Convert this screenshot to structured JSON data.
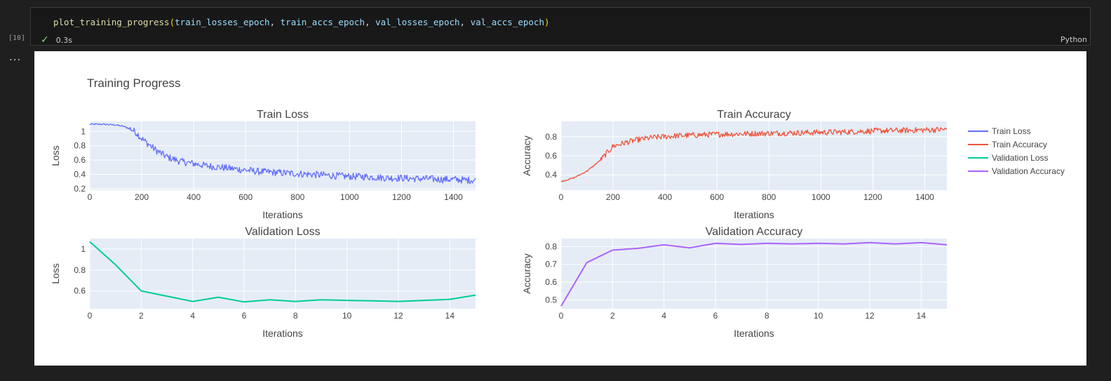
{
  "cell": {
    "execution_count": "[10]",
    "code": {
      "function": "plot_training_progress",
      "args": [
        "train_losses_epoch",
        "train_accs_epoch",
        "val_losses_epoch",
        "val_accs_epoch"
      ]
    },
    "duration": "0.3s",
    "language": "Python",
    "output_indicator": "..."
  },
  "colors": {
    "train_loss": "#636efa",
    "train_acc": "#ef553b",
    "val_loss": "#00cc96",
    "val_acc": "#ab63fa",
    "plot_bg": "#e5ecf6",
    "status_check": "#89d185"
  },
  "chart_data": {
    "title": "Training Progress",
    "legend": {
      "placement": "right",
      "items": [
        "Train Loss",
        "Train Accuracy",
        "Validation Loss",
        "Validation Accuracy"
      ]
    },
    "subplots": [
      {
        "type": "line",
        "title": "Train Loss",
        "xlabel": "Iterations",
        "ylabel": "Loss",
        "xlim": [
          0,
          1485
        ],
        "ylim": [
          0.18,
          1.14
        ],
        "xticks": [
          0,
          200,
          400,
          600,
          800,
          1000,
          1200,
          1400
        ],
        "yticks": [
          0.2,
          0.4,
          0.6,
          0.8,
          1
        ],
        "ytick_labels": [
          "0.2",
          "0.4",
          "0.6",
          "0.8",
          "1"
        ],
        "series": [
          {
            "name": "Train Loss",
            "x": [
              0,
              50,
              100,
              130,
              160,
              180,
              200,
              220,
              250,
              280,
              300,
              350,
              400,
              450,
              500,
              550,
              600,
              650,
              700,
              750,
              800,
              850,
              900,
              950,
              1000,
              1050,
              1100,
              1150,
              1200,
              1250,
              1300,
              1350,
              1400,
              1450,
              1485
            ],
            "y": [
              1.1,
              1.1,
              1.09,
              1.07,
              1.03,
              0.98,
              0.9,
              0.84,
              0.75,
              0.68,
              0.64,
              0.58,
              0.55,
              0.52,
              0.5,
              0.48,
              0.46,
              0.44,
              0.43,
              0.42,
              0.41,
              0.4,
              0.39,
              0.38,
              0.37,
              0.37,
              0.36,
              0.35,
              0.35,
              0.34,
              0.34,
              0.33,
              0.33,
              0.32,
              0.32
            ],
            "noise": 0.05
          }
        ]
      },
      {
        "type": "line",
        "title": "Train Accuracy",
        "xlabel": "Iterations",
        "ylabel": "Accuracy",
        "xlim": [
          0,
          1485
        ],
        "ylim": [
          0.24,
          0.96
        ],
        "xticks": [
          0,
          200,
          400,
          600,
          800,
          1000,
          1200,
          1400
        ],
        "yticks": [
          0.4,
          0.6,
          0.8
        ],
        "ytick_labels": [
          "0.4",
          "0.6",
          "0.8"
        ],
        "series": [
          {
            "name": "Train Accuracy",
            "x": [
              0,
              50,
              100,
              150,
              180,
              200,
              250,
              300,
              350,
              400,
              450,
              500,
              550,
              600,
              700,
              800,
              900,
              1000,
              1100,
              1200,
              1300,
              1400,
              1485
            ],
            "y": [
              0.33,
              0.37,
              0.44,
              0.55,
              0.64,
              0.7,
              0.74,
              0.77,
              0.79,
              0.8,
              0.81,
              0.815,
              0.82,
              0.825,
              0.83,
              0.835,
              0.84,
              0.845,
              0.85,
              0.86,
              0.865,
              0.87,
              0.875
            ],
            "noise": 0.03
          }
        ]
      },
      {
        "type": "line",
        "title": "Validation Loss",
        "xlabel": "Iterations",
        "ylabel": "Loss",
        "xlim": [
          0,
          15
        ],
        "ylim": [
          0.43,
          1.1
        ],
        "xticks": [
          0,
          2,
          4,
          6,
          8,
          10,
          12,
          14
        ],
        "yticks": [
          0.6,
          0.8,
          1
        ],
        "ytick_labels": [
          "0.6",
          "0.8",
          "1"
        ],
        "series": [
          {
            "name": "Validation Loss",
            "x": [
              0,
              1,
              2,
              3,
              4,
              5,
              6,
              7,
              8,
              9,
              10,
              11,
              12,
              13,
              14,
              15
            ],
            "y": [
              1.07,
              0.85,
              0.6,
              0.55,
              0.5,
              0.54,
              0.495,
              0.515,
              0.5,
              0.515,
              0.51,
              0.505,
              0.5,
              0.51,
              0.52,
              0.56
            ]
          }
        ]
      },
      {
        "type": "line",
        "title": "Validation Accuracy",
        "xlabel": "Iterations",
        "ylabel": "Accuracy",
        "xlim": [
          0,
          15
        ],
        "ylim": [
          0.45,
          0.845
        ],
        "xticks": [
          0,
          2,
          4,
          6,
          8,
          10,
          12,
          14
        ],
        "yticks": [
          0.5,
          0.6,
          0.7,
          0.8
        ],
        "ytick_labels": [
          "0.5",
          "0.6",
          "0.7",
          "0.8"
        ],
        "series": [
          {
            "name": "Validation Accuracy",
            "x": [
              0,
              1,
              2,
              3,
              4,
              5,
              6,
              7,
              8,
              9,
              10,
              11,
              12,
              13,
              14,
              15
            ],
            "y": [
              0.465,
              0.71,
              0.78,
              0.79,
              0.81,
              0.793,
              0.818,
              0.812,
              0.818,
              0.815,
              0.818,
              0.815,
              0.822,
              0.815,
              0.822,
              0.81
            ]
          }
        ]
      }
    ]
  }
}
